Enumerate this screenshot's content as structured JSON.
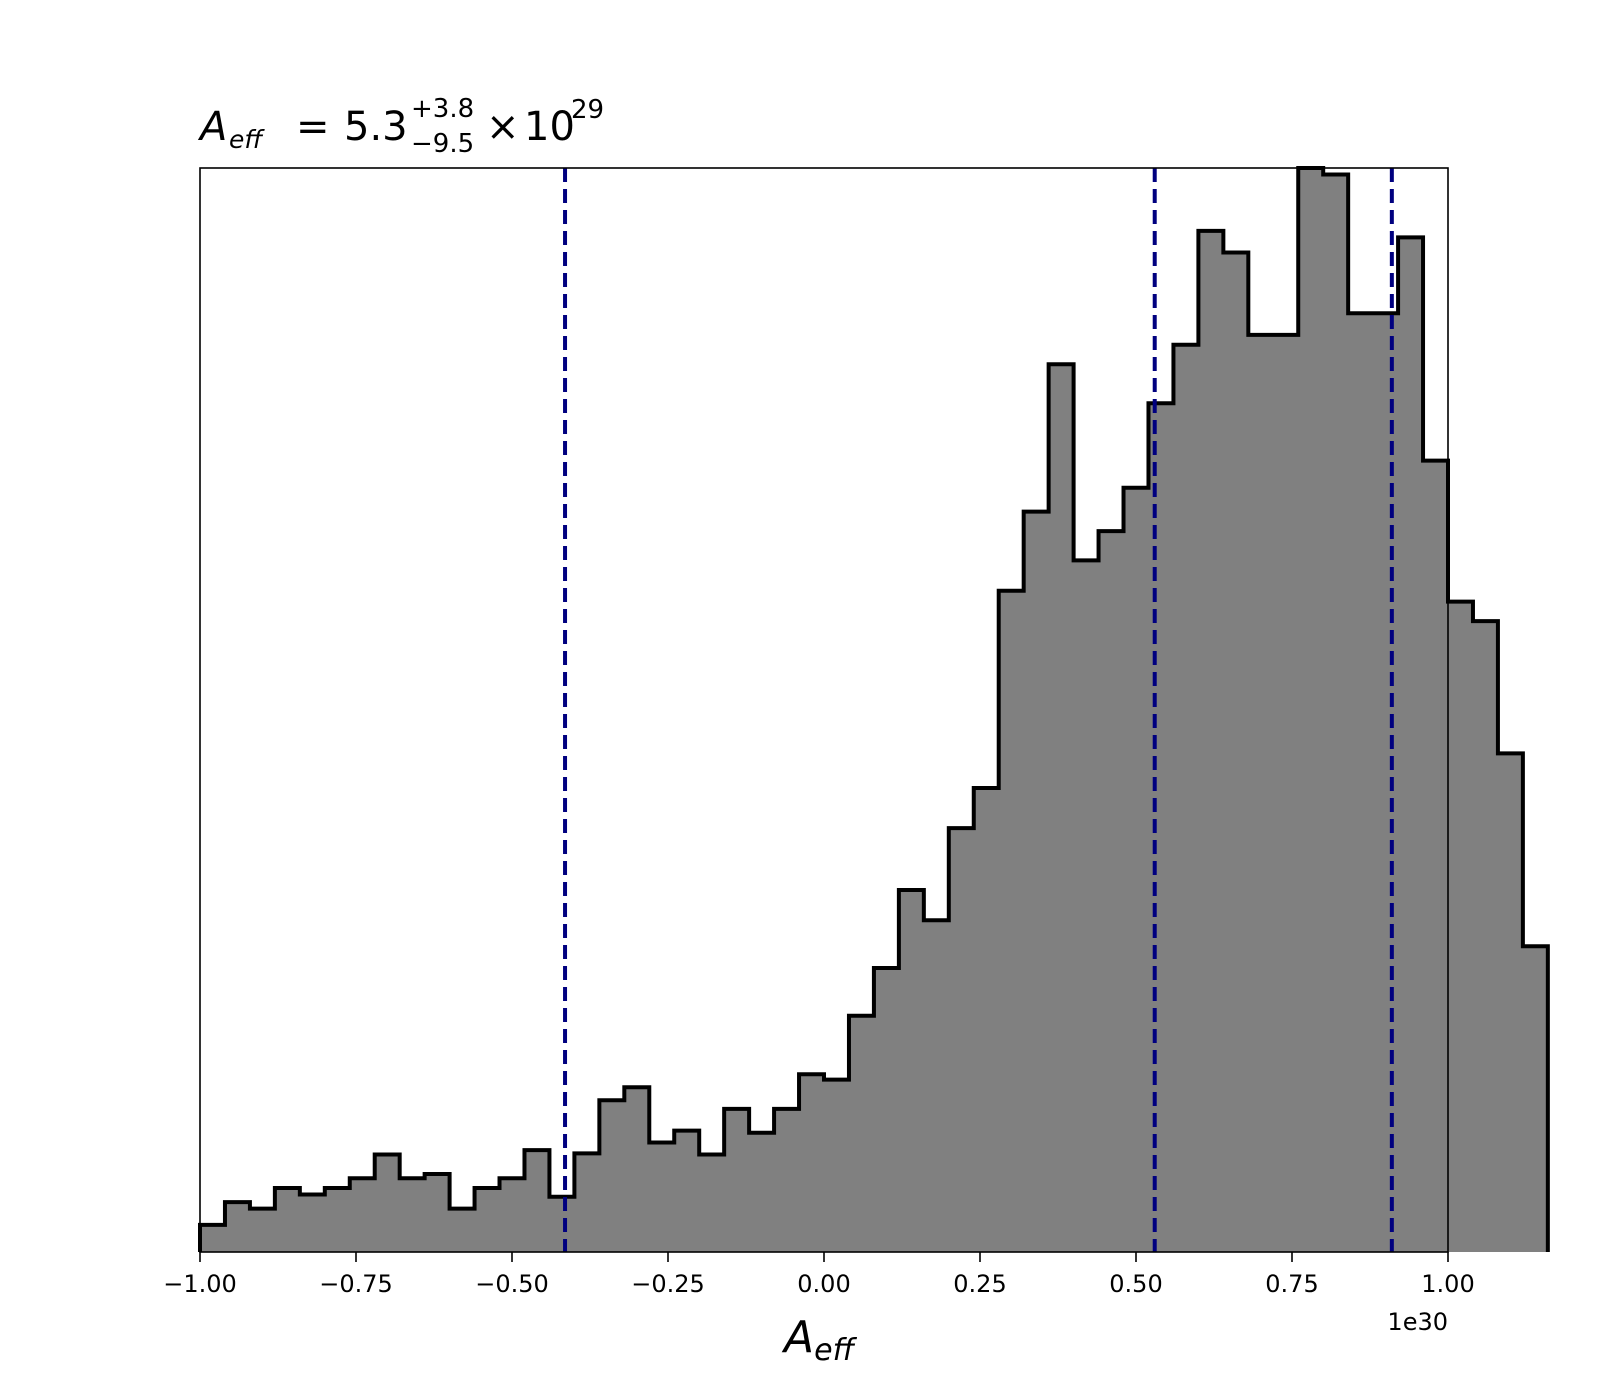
{
  "chart_data": {
    "type": "bar",
    "histogram": true,
    "title": {
      "symbol": "A",
      "symbol_sub": "eff",
      "equals": "=",
      "median": "5.3",
      "plus": "+3.8",
      "minus": "−9.5",
      "times": "×",
      "base": "10",
      "exponent": "29"
    },
    "xlabel": {
      "symbol": "A",
      "sub": "eff"
    },
    "x_offset_label": "1e30",
    "xlim": [
      -1.0,
      1.0
    ],
    "ylim": [
      0,
      1.0
    ],
    "y_ticks_visible": false,
    "grid": false,
    "x_ticks": [
      {
        "value": -1.0,
        "label": "−1.00"
      },
      {
        "value": -0.75,
        "label": "−0.75"
      },
      {
        "value": -0.5,
        "label": "−0.50"
      },
      {
        "value": -0.25,
        "label": "−0.25"
      },
      {
        "value": 0.0,
        "label": "0.00"
      },
      {
        "value": 0.25,
        "label": "0.25"
      },
      {
        "value": 0.5,
        "label": "0.50"
      },
      {
        "value": 0.75,
        "label": "0.75"
      },
      {
        "value": 1.0,
        "label": "1.00"
      }
    ],
    "bin_start": -1.0,
    "bin_width": 0.04,
    "values": [
      0.025,
      0.046,
      0.04,
      0.059,
      0.053,
      0.059,
      0.068,
      0.09,
      0.068,
      0.072,
      0.04,
      0.059,
      0.068,
      0.094,
      0.051,
      0.091,
      0.14,
      0.152,
      0.101,
      0.112,
      0.09,
      0.132,
      0.11,
      0.132,
      0.164,
      0.159,
      0.218,
      0.262,
      0.334,
      0.306,
      0.391,
      0.428,
      0.61,
      0.683,
      0.819,
      0.638,
      0.665,
      0.705,
      0.783,
      0.837,
      0.942,
      0.922,
      0.846,
      0.846,
      1.0,
      0.994,
      0.866,
      0.866,
      0.936,
      0.73,
      0.6,
      0.582,
      0.46,
      0.282
    ],
    "vlines": [
      -0.415,
      0.53,
      0.91
    ],
    "colors": {
      "fill": "#808080",
      "edge": "#000000",
      "vline": "#00007f"
    }
  }
}
